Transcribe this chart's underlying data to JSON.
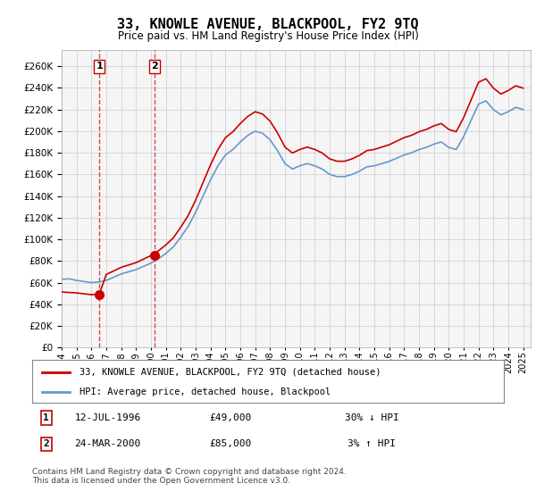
{
  "title": "33, KNOWLE AVENUE, BLACKPOOL, FY2 9TQ",
  "subtitle": "Price paid vs. HM Land Registry's House Price Index (HPI)",
  "legend_line1": "33, KNOWLE AVENUE, BLACKPOOL, FY2 9TQ (detached house)",
  "legend_line2": "HPI: Average price, detached house, Blackpool",
  "table_row1_num": "1",
  "table_row1_date": "12-JUL-1996",
  "table_row1_price": "£49,000",
  "table_row1_hpi": "30% ↓ HPI",
  "table_row2_num": "2",
  "table_row2_date": "24-MAR-2000",
  "table_row2_price": "£85,000",
  "table_row2_hpi": "3% ↑ HPI",
  "footer": "Contains HM Land Registry data © Crown copyright and database right 2024.\nThis data is licensed under the Open Government Licence v3.0.",
  "sale1_x": 1996.53,
  "sale1_y": 49000,
  "sale2_x": 2000.23,
  "sale2_y": 85000,
  "marker1_label": "1",
  "marker2_label": "2",
  "vline1_x": 1996.53,
  "vline2_x": 2000.23,
  "ylim": [
    0,
    275000
  ],
  "xlim_start": 1994.0,
  "xlim_end": 2025.5,
  "ytick_step": 20000,
  "red_color": "#cc0000",
  "blue_color": "#6699cc",
  "grid_color": "#cccccc",
  "bg_color": "#ffffff",
  "plot_bg_color": "#f5f5f5",
  "xticks": [
    1994,
    1995,
    1996,
    1997,
    1998,
    1999,
    2000,
    2001,
    2002,
    2003,
    2004,
    2005,
    2006,
    2007,
    2008,
    2009,
    2010,
    2011,
    2012,
    2013,
    2014,
    2015,
    2016,
    2017,
    2018,
    2019,
    2020,
    2021,
    2022,
    2023,
    2024,
    2025
  ]
}
